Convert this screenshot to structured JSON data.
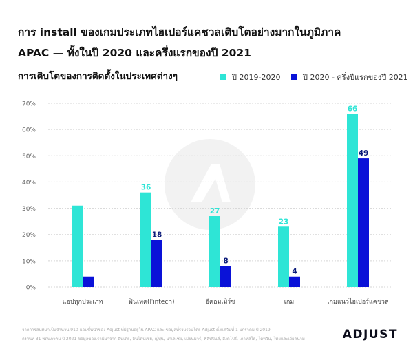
{
  "title": {
    "line1": "การ install ของเกมประเภทไฮเปอร์แคชวลเติบโตอย่างมากในภูมิภาค",
    "line2": "APAC — ทั้งในปี 2020 และครึ่งแรกของปี 2021"
  },
  "subtitle": "การเติบโตของการติดตั้งในประเทศต่างๆ",
  "footnote": {
    "line1": "จากการสนทนาเป็นจำนวน 910 แอปชั้นนำของ Adjust ที่มีฐานอยู่ใน APAC และ ข้อมูลที่รวบรวมโดย Adjust ตั้งแต่วันที่ 1 มกราคม ปี 2019",
    "line2": "ถึงวันที่ 31 พฤษภาคม ปี 2021 ข้อมูลของเรามีมาจาก อินเดีย, อินโดนีเซีย, ญี่ปุ่น, มาเลเซีย, เมียนมาร์, ฟิลิปปินส์, สิงคโปร์, เกาหลีใต้, ไต้หวัน, ไทยและเวียดนาม"
  },
  "brand": {
    "logo_text": "ADJUST",
    "color": "#0b0c1a"
  },
  "colors": {
    "series1": "#2ee5d6",
    "series2": "#0a12d8",
    "label_series1": "#2ee5d6",
    "label_series2": "#0b1a7a",
    "grid": "#d5d5d5",
    "axis_text": "#666666",
    "watermark": "#f2f2f2"
  },
  "chart_data": {
    "type": "bar",
    "title": "การ install ของเกมประเภทไฮเปอร์แคชวลเติบโตอย่างมากในภูมิภาค APAC — ทั้งในปี 2020 และครึ่งแรกของปี 2021",
    "subtitle": "การเติบโตของการติดตั้งในประเทศต่างๆ",
    "categories": [
      "แอปทุกประเภท",
      "ฟินเทค(Fintech)",
      "อีคอมเมิร์ซ",
      "เกม",
      "เกมแนวไฮเปอร์แคชวล"
    ],
    "series": [
      {
        "name": "ปี 2019-2020",
        "values": [
          31,
          36,
          27,
          23,
          66
        ],
        "data_labels": [
          "",
          "36",
          "27",
          "23",
          "66"
        ]
      },
      {
        "name": "ปี 2020 - ครึ่งปีแรกของปี 2021",
        "values": [
          4,
          18,
          8,
          4,
          49
        ],
        "data_labels": [
          "",
          "18",
          "8",
          "4",
          "49"
        ]
      }
    ],
    "xlabel": "",
    "ylabel": "",
    "ylim": [
      0,
      70
    ],
    "yticks": [
      0,
      10,
      20,
      30,
      40,
      50,
      60,
      70
    ],
    "ytick_labels": [
      "0%",
      "10%",
      "20%",
      "30%",
      "40%",
      "50%",
      "60%",
      "70%"
    ],
    "grid": true,
    "legend": "top-right"
  }
}
